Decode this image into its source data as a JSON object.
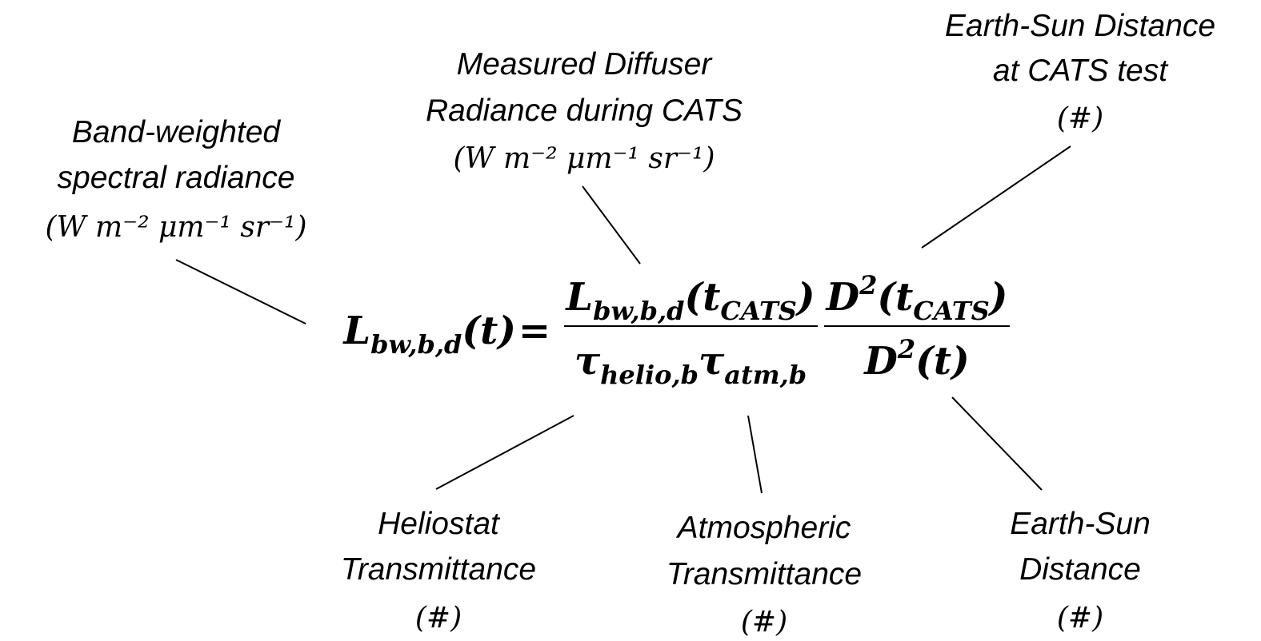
{
  "equation": {
    "lhs": [
      {
        "text": "L",
        "style": "base"
      },
      {
        "text": "bw,b,d",
        "style": "sub"
      },
      {
        "text": "(t)",
        "style": "base"
      }
    ],
    "equals": "=",
    "fraction1": {
      "numerator": [
        {
          "text": "L",
          "style": "base"
        },
        {
          "text": "bw,b,d",
          "style": "sub"
        },
        {
          "text": "(t",
          "style": "base"
        },
        {
          "text": "CATS",
          "style": "sub"
        },
        {
          "text": ")",
          "style": "base"
        }
      ],
      "denominator": [
        {
          "text": "τ",
          "style": "base"
        },
        {
          "text": "helio,b",
          "style": "sub"
        },
        {
          "text": "τ",
          "style": "base"
        },
        {
          "text": "atm,b",
          "style": "sub"
        }
      ]
    },
    "fraction2": {
      "numerator": [
        {
          "text": "D",
          "style": "base"
        },
        {
          "text": "2",
          "style": "sup"
        },
        {
          "text": "(t",
          "style": "base"
        },
        {
          "text": "CATS",
          "style": "sub"
        },
        {
          "text": ")",
          "style": "base"
        }
      ],
      "denominator": [
        {
          "text": "D",
          "style": "base"
        },
        {
          "text": "2",
          "style": "sup"
        },
        {
          "text": "(t)",
          "style": "base"
        }
      ]
    }
  },
  "annotations": [
    {
      "lines": [
        "Band-weighted",
        "spectral radiance"
      ],
      "unit": "(W m⁻² μm⁻¹ sr⁻¹)"
    },
    {
      "lines": [
        "Measured Diffuser",
        "Radiance during CATS"
      ],
      "unit": "(W m⁻² μm⁻¹ sr⁻¹)"
    },
    {
      "lines": [
        "Earth-Sun Distance",
        "at CATS test"
      ],
      "unit": "(#)"
    },
    {
      "lines": [
        "Heliostat",
        "Transmittance"
      ],
      "unit": "(#)"
    },
    {
      "lines": [
        "Atmospheric",
        "Transmittance"
      ],
      "unit": "(#)"
    },
    {
      "lines": [
        "Earth-Sun",
        "Distance"
      ],
      "unit": "(#)"
    }
  ]
}
